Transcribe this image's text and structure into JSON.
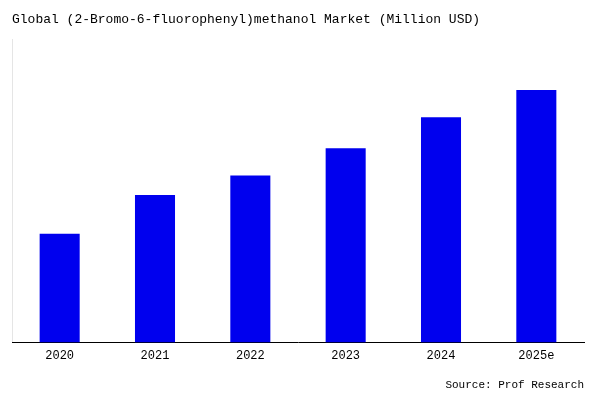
{
  "chart_data": {
    "type": "bar",
    "title": "Global (2-Bromo-6-fluorophenyl)methanol Market (Million USD)",
    "categories": [
      "2020",
      "2021",
      "2022",
      "2023",
      "2024",
      "2025e"
    ],
    "values": [
      28,
      38,
      43,
      50,
      58,
      65
    ],
    "color": "#0000EE",
    "ylim": [
      0,
      78
    ],
    "grid": false,
    "tick_labels": "x",
    "annotation": "Source: Prof Research"
  }
}
